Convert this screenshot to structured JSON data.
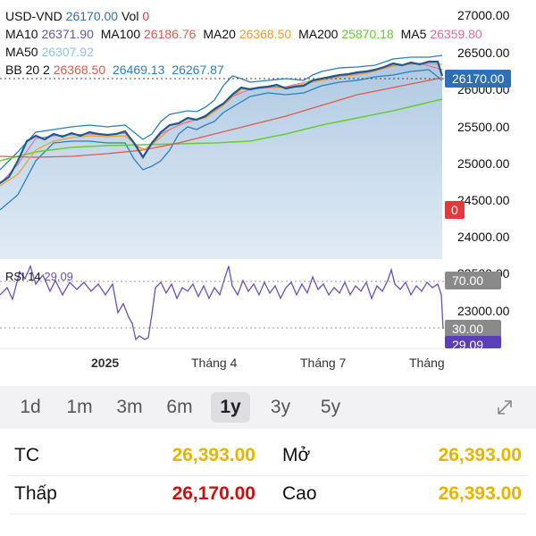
{
  "header": {
    "symbol": "USD-VND",
    "price": "26170.00",
    "vol_label": "Vol",
    "vol": "0"
  },
  "ma_row": [
    {
      "label": "MA10",
      "value": "26371.90",
      "color": "#5b5bb5"
    },
    {
      "label": "MA100",
      "value": "26186.76",
      "color": "#e05a4a"
    },
    {
      "label": "MA20",
      "value": "26368.50",
      "color": "#f0a030"
    },
    {
      "label": "MA200",
      "value": "25870.18",
      "color": "#66cc33"
    },
    {
      "label": "MA5",
      "value": "26359.80",
      "color": "#e86aa0"
    }
  ],
  "ma50": {
    "label": "MA50",
    "value": "26307.92",
    "color": "#8fc3ea"
  },
  "bb": {
    "label": "BB 20 2",
    "values": [
      "26368.50",
      "26469.13",
      "26267.87"
    ],
    "colors": [
      "#e05a4a",
      "#2a7fc0",
      "#2a7fc0"
    ]
  },
  "rsi": {
    "label": "RSI 14",
    "value": "29.09",
    "color": "#6a4fc4"
  },
  "y_axis": [
    "27000.00",
    "26500.00",
    "26000.00",
    "25500.00",
    "25000.00",
    "24500.00",
    "24000.00",
    "23500.00",
    "23000.00"
  ],
  "tags": {
    "price": "26170.00",
    "vol": "0",
    "rsi_upper": "70.00",
    "rsi_lower": "30.00",
    "rsi_value": "29.09"
  },
  "x_axis": [
    "2025",
    "Tháng 4",
    "Tháng 7",
    "Tháng"
  ],
  "ranges": [
    "1d",
    "1m",
    "3m",
    "6m",
    "1y",
    "3y",
    "5y"
  ],
  "active_range": "1y",
  "stats": {
    "tc_label": "TC",
    "tc_value": "26,393.00",
    "open_label": "Mở",
    "open_value": "26,393.00",
    "low_label": "Thấp",
    "low_value": "26,170.00",
    "high_label": "Cao",
    "high_value": "26,393.00"
  },
  "colors": {
    "price_line": "#1f5a8c",
    "area_fill": "#a9c6df",
    "bb_band": "#2a7fc0",
    "tag_blue": "#2f6fb3",
    "tag_red": "#e03b3b",
    "tag_gray": "#8a8a8a",
    "tag_purple": "#5a3fb8",
    "gold": "#e8b400",
    "red_value": "#cc1111"
  }
}
